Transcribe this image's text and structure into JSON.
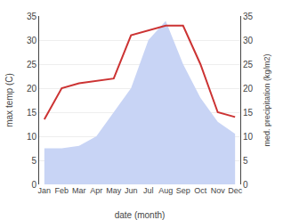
{
  "chart_data": {
    "type": "line",
    "xlabel": "date (month)",
    "ylabel": "max temp (C)",
    "y2label": "med. precipitation (kg/m2)",
    "categories": [
      "Jan",
      "Feb",
      "Mar",
      "Apr",
      "May",
      "Jun",
      "Jul",
      "Aug",
      "Sep",
      "Oct",
      "Nov",
      "Dec"
    ],
    "series": [
      {
        "type": "area",
        "color": "#c8d4f5",
        "values": [
          7.5,
          7.5,
          8.0,
          10.0,
          15.0,
          20.0,
          30.0,
          34.0,
          25.0,
          18.0,
          13.0,
          10.5
        ]
      },
      {
        "type": "line",
        "color": "#cc3333",
        "values": [
          13.5,
          20.0,
          21.0,
          21.5,
          22.0,
          31.0,
          32.0,
          33.0,
          33.0,
          25.0,
          15.0,
          14.0
        ]
      }
    ],
    "ylim": [
      0,
      35
    ],
    "yticks": [
      0,
      5,
      10,
      15,
      20,
      25,
      30,
      35
    ],
    "y2lim": [
      0,
      35
    ],
    "y2ticks": [
      0,
      5,
      10,
      15,
      20,
      25,
      30,
      35
    ],
    "grid": true
  }
}
